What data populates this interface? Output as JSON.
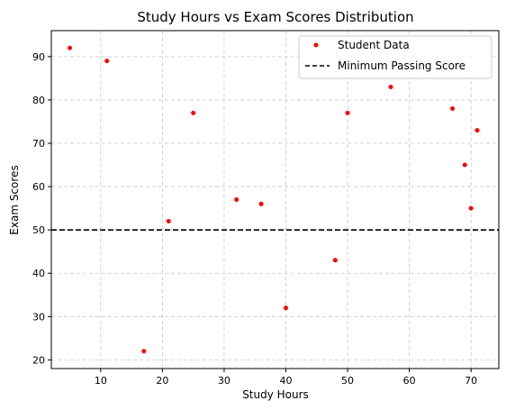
{
  "chart_data": {
    "type": "scatter",
    "title": "Study Hours vs Exam Scores Distribution",
    "xlabel": "Study Hours",
    "ylabel": "Exam Scores",
    "xlim": [
      2,
      74.5
    ],
    "ylim": [
      18,
      96
    ],
    "x_ticks": [
      10,
      20,
      30,
      40,
      50,
      60,
      70
    ],
    "y_ticks": [
      20,
      30,
      40,
      50,
      60,
      70,
      80,
      90
    ],
    "grid": true,
    "legend_position": "top-right",
    "series": [
      {
        "name": "Student Data",
        "color": "#ff0000",
        "points": [
          {
            "x": 5,
            "y": 92
          },
          {
            "x": 11,
            "y": 89
          },
          {
            "x": 17,
            "y": 22
          },
          {
            "x": 21,
            "y": 52
          },
          {
            "x": 25,
            "y": 77
          },
          {
            "x": 32,
            "y": 57
          },
          {
            "x": 36,
            "y": 56
          },
          {
            "x": 40,
            "y": 32
          },
          {
            "x": 48,
            "y": 43
          },
          {
            "x": 50,
            "y": 77
          },
          {
            "x": 57,
            "y": 83
          },
          {
            "x": 67,
            "y": 78
          },
          {
            "x": 69,
            "y": 65
          },
          {
            "x": 70,
            "y": 55
          },
          {
            "x": 71,
            "y": 73
          }
        ]
      }
    ],
    "reference_line": {
      "name": "Minimum Passing Score",
      "y": 50,
      "color": "#000000",
      "style": "dashed"
    }
  }
}
